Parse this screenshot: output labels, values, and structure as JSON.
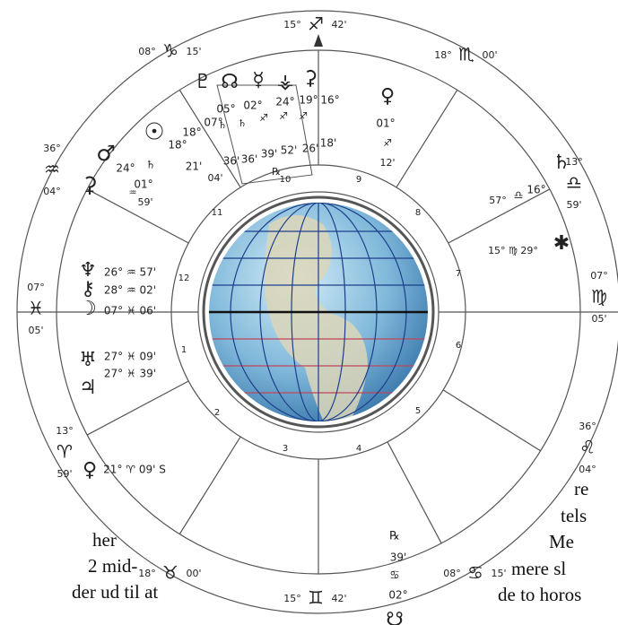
{
  "outer_ring": [
    [
      "15°",
      "♐",
      "42'"
    ],
    [
      "18°",
      "♏",
      "00'"
    ],
    [
      "13°",
      "♎",
      "59'"
    ],
    [
      "07°",
      "♍",
      "05'"
    ],
    [
      "36°",
      "♌",
      "04°"
    ],
    [
      "08°",
      "♋",
      "15'"
    ],
    [
      "15°",
      "♊",
      "42'"
    ],
    [
      "18°",
      "♉",
      "00'"
    ],
    [
      "13°",
      "♈",
      "59'"
    ],
    [
      "07°",
      "♓",
      "05'"
    ],
    [
      "36°",
      "♒",
      "04°"
    ],
    [
      "08°",
      "♑",
      "15'"
    ]
  ],
  "houses": [
    "1",
    "2",
    "3",
    "4",
    "5",
    "6",
    "7",
    "8",
    "9",
    "10",
    "11",
    "12"
  ],
  "planets": [
    "♀",
    "01°",
    "♐",
    "12'",
    "♄",
    "16°",
    "♎",
    "57°",
    "✱",
    "15° ♍ 29°",
    "♆",
    "26° ♒ 57'",
    "⚷",
    "28° ♒ 02'",
    "☽",
    "07° ♓ 06'",
    "♅",
    "27° ♓ 09'",
    "♃",
    "27° ♓ 39'",
    "♀",
    "21° ♈ 09' S",
    "℞",
    "39'",
    "♋",
    "02°",
    "☋",
    "♂",
    "24°",
    "♒",
    "01°",
    "59'",
    "⚳",
    "☉",
    "18°",
    "♄",
    "21'",
    "04'",
    "♇",
    "☊",
    "☿",
    "⚶",
    "⚳",
    "05°",
    "02°",
    "24°",
    "19°",
    "16°",
    "♄",
    "♄",
    "♐",
    "♐",
    "♐",
    "36'",
    "36'",
    "39'",
    "52'",
    "26'",
    "18'",
    "℞",
    "07°",
    "18°"
  ],
  "side_text": [
    "her",
    "2 mid-",
    "der ud til at",
    "re",
    "tels",
    "Me",
    "mere sl",
    "de to horos"
  ]
}
